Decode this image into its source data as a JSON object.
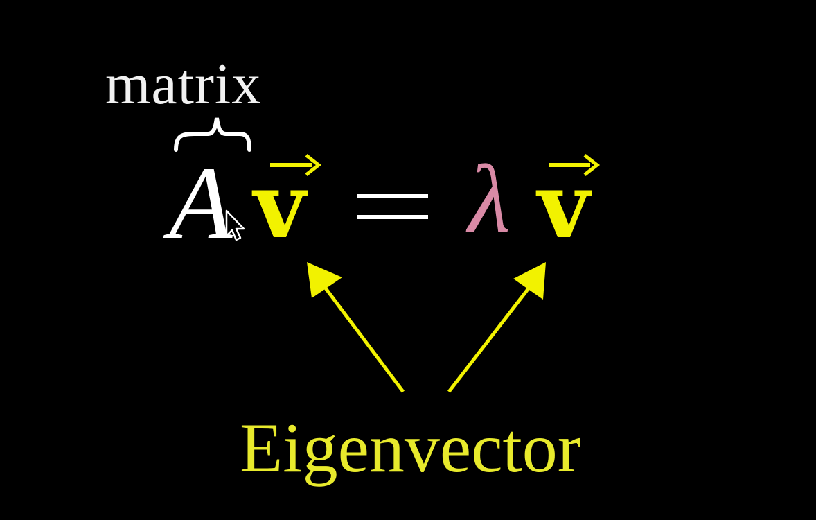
{
  "equation": {
    "matrix_label": "matrix",
    "matrix_symbol": "A",
    "vector_left": "v",
    "equals": "=",
    "eigenvalue": "λ",
    "vector_right": "v"
  },
  "annotation": {
    "label": "Eigenvector"
  },
  "colors": {
    "background": "#000000",
    "matrix": "#ffffff",
    "vector": "#f2f200",
    "eigenvalue": "#d98aa6",
    "annotation": "#e8ea2c"
  },
  "icons": [
    "cursor-pointer-icon"
  ]
}
